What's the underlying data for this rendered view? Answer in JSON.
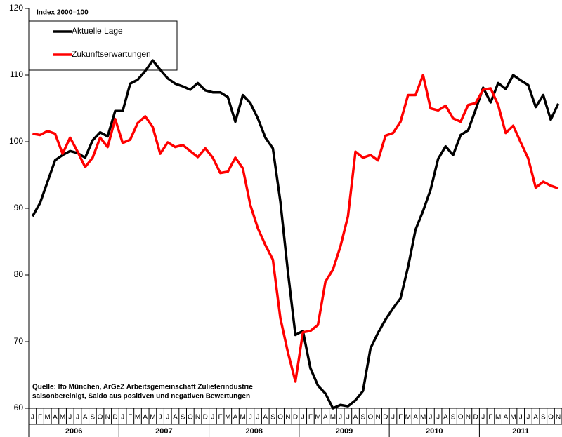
{
  "chart_data": {
    "type": "line",
    "annotation": "Index  2000=100",
    "notes": [
      "Quelle: Ifo München, ArGeZ Arbeitsgemeinschaft Zulieferindustrie",
      "saisonbereinigt, Saldo aus positiven und negativen Bewertungen"
    ],
    "categories": [
      "J",
      "F",
      "M",
      "A",
      "M",
      "J",
      "J",
      "A",
      "S",
      "O",
      "N",
      "D",
      "J",
      "F",
      "M",
      "A",
      "M",
      "J",
      "J",
      "A",
      "S",
      "O",
      "N",
      "D",
      "J",
      "F",
      "M",
      "A",
      "M",
      "J",
      "J",
      "A",
      "S",
      "O",
      "N",
      "D",
      "J",
      "F",
      "M",
      "A",
      "M",
      "J",
      "J",
      "A",
      "S",
      "O",
      "N",
      "D",
      "J",
      "F",
      "M",
      "A",
      "M",
      "J",
      "J",
      "A",
      "S",
      "O",
      "N",
      "D",
      "J",
      "F",
      "M",
      "A",
      "M",
      "J",
      "J",
      "A",
      "S",
      "O",
      "N"
    ],
    "years": [
      "2006",
      "2007",
      "2008",
      "2009",
      "2010",
      "2011"
    ],
    "series": [
      {
        "name": "Aktuelle Lage",
        "color": "#000000",
        "values": [
          88.8,
          90.8,
          94,
          97.2,
          98,
          98.6,
          98.3,
          97.6,
          100.2,
          101.4,
          100.8,
          104.6,
          104.6,
          108.7,
          109.3,
          110.6,
          112.2,
          110.8,
          109.5,
          108.7,
          108.3,
          107.8,
          108.8,
          107.7,
          107.4,
          107.4,
          106.7,
          103,
          107,
          105.8,
          103.5,
          100.6,
          99,
          91,
          80.5,
          71,
          71.6,
          66,
          63.4,
          62.2,
          60,
          60.5,
          60.3,
          61.2,
          62.6,
          69,
          71.3,
          73.3,
          75,
          76.5,
          81.2,
          86.8,
          89.6,
          92.8,
          97.4,
          99.3,
          98,
          101,
          101.7,
          104.8,
          108.1,
          105.9,
          108.8,
          107.9,
          110,
          109.2,
          108.5,
          105.2,
          107,
          103.3,
          105.7
        ]
      },
      {
        "name": "Zukunftserwartungen",
        "color": "#ff0000",
        "values": [
          101.2,
          101,
          101.6,
          101.2,
          98.2,
          100.6,
          98.5,
          96.2,
          97.6,
          100.6,
          99.2,
          103.4,
          99.8,
          100.3,
          102.8,
          103.8,
          102.2,
          98.2,
          99.9,
          99.2,
          99.5,
          98.6,
          97.7,
          99,
          97.6,
          95.3,
          95.5,
          97.6,
          96,
          90.5,
          87,
          84.5,
          82.3,
          73.5,
          68.4,
          64,
          71.4,
          71.6,
          72.5,
          79,
          80.8,
          84.3,
          88.8,
          98.5,
          97.6,
          98,
          97.2,
          100.9,
          101.3,
          103,
          107,
          107,
          110,
          105,
          104.7,
          105.4,
          103.5,
          103,
          105.5,
          105.8,
          107.8,
          108,
          105.5,
          101.3,
          102.4,
          99.9,
          97.5,
          93.1,
          94,
          93.4,
          93
        ]
      }
    ],
    "ylim": [
      60,
      120
    ],
    "yticks": [
      60,
      70,
      80,
      90,
      100,
      110,
      120
    ],
    "grid": false
  }
}
